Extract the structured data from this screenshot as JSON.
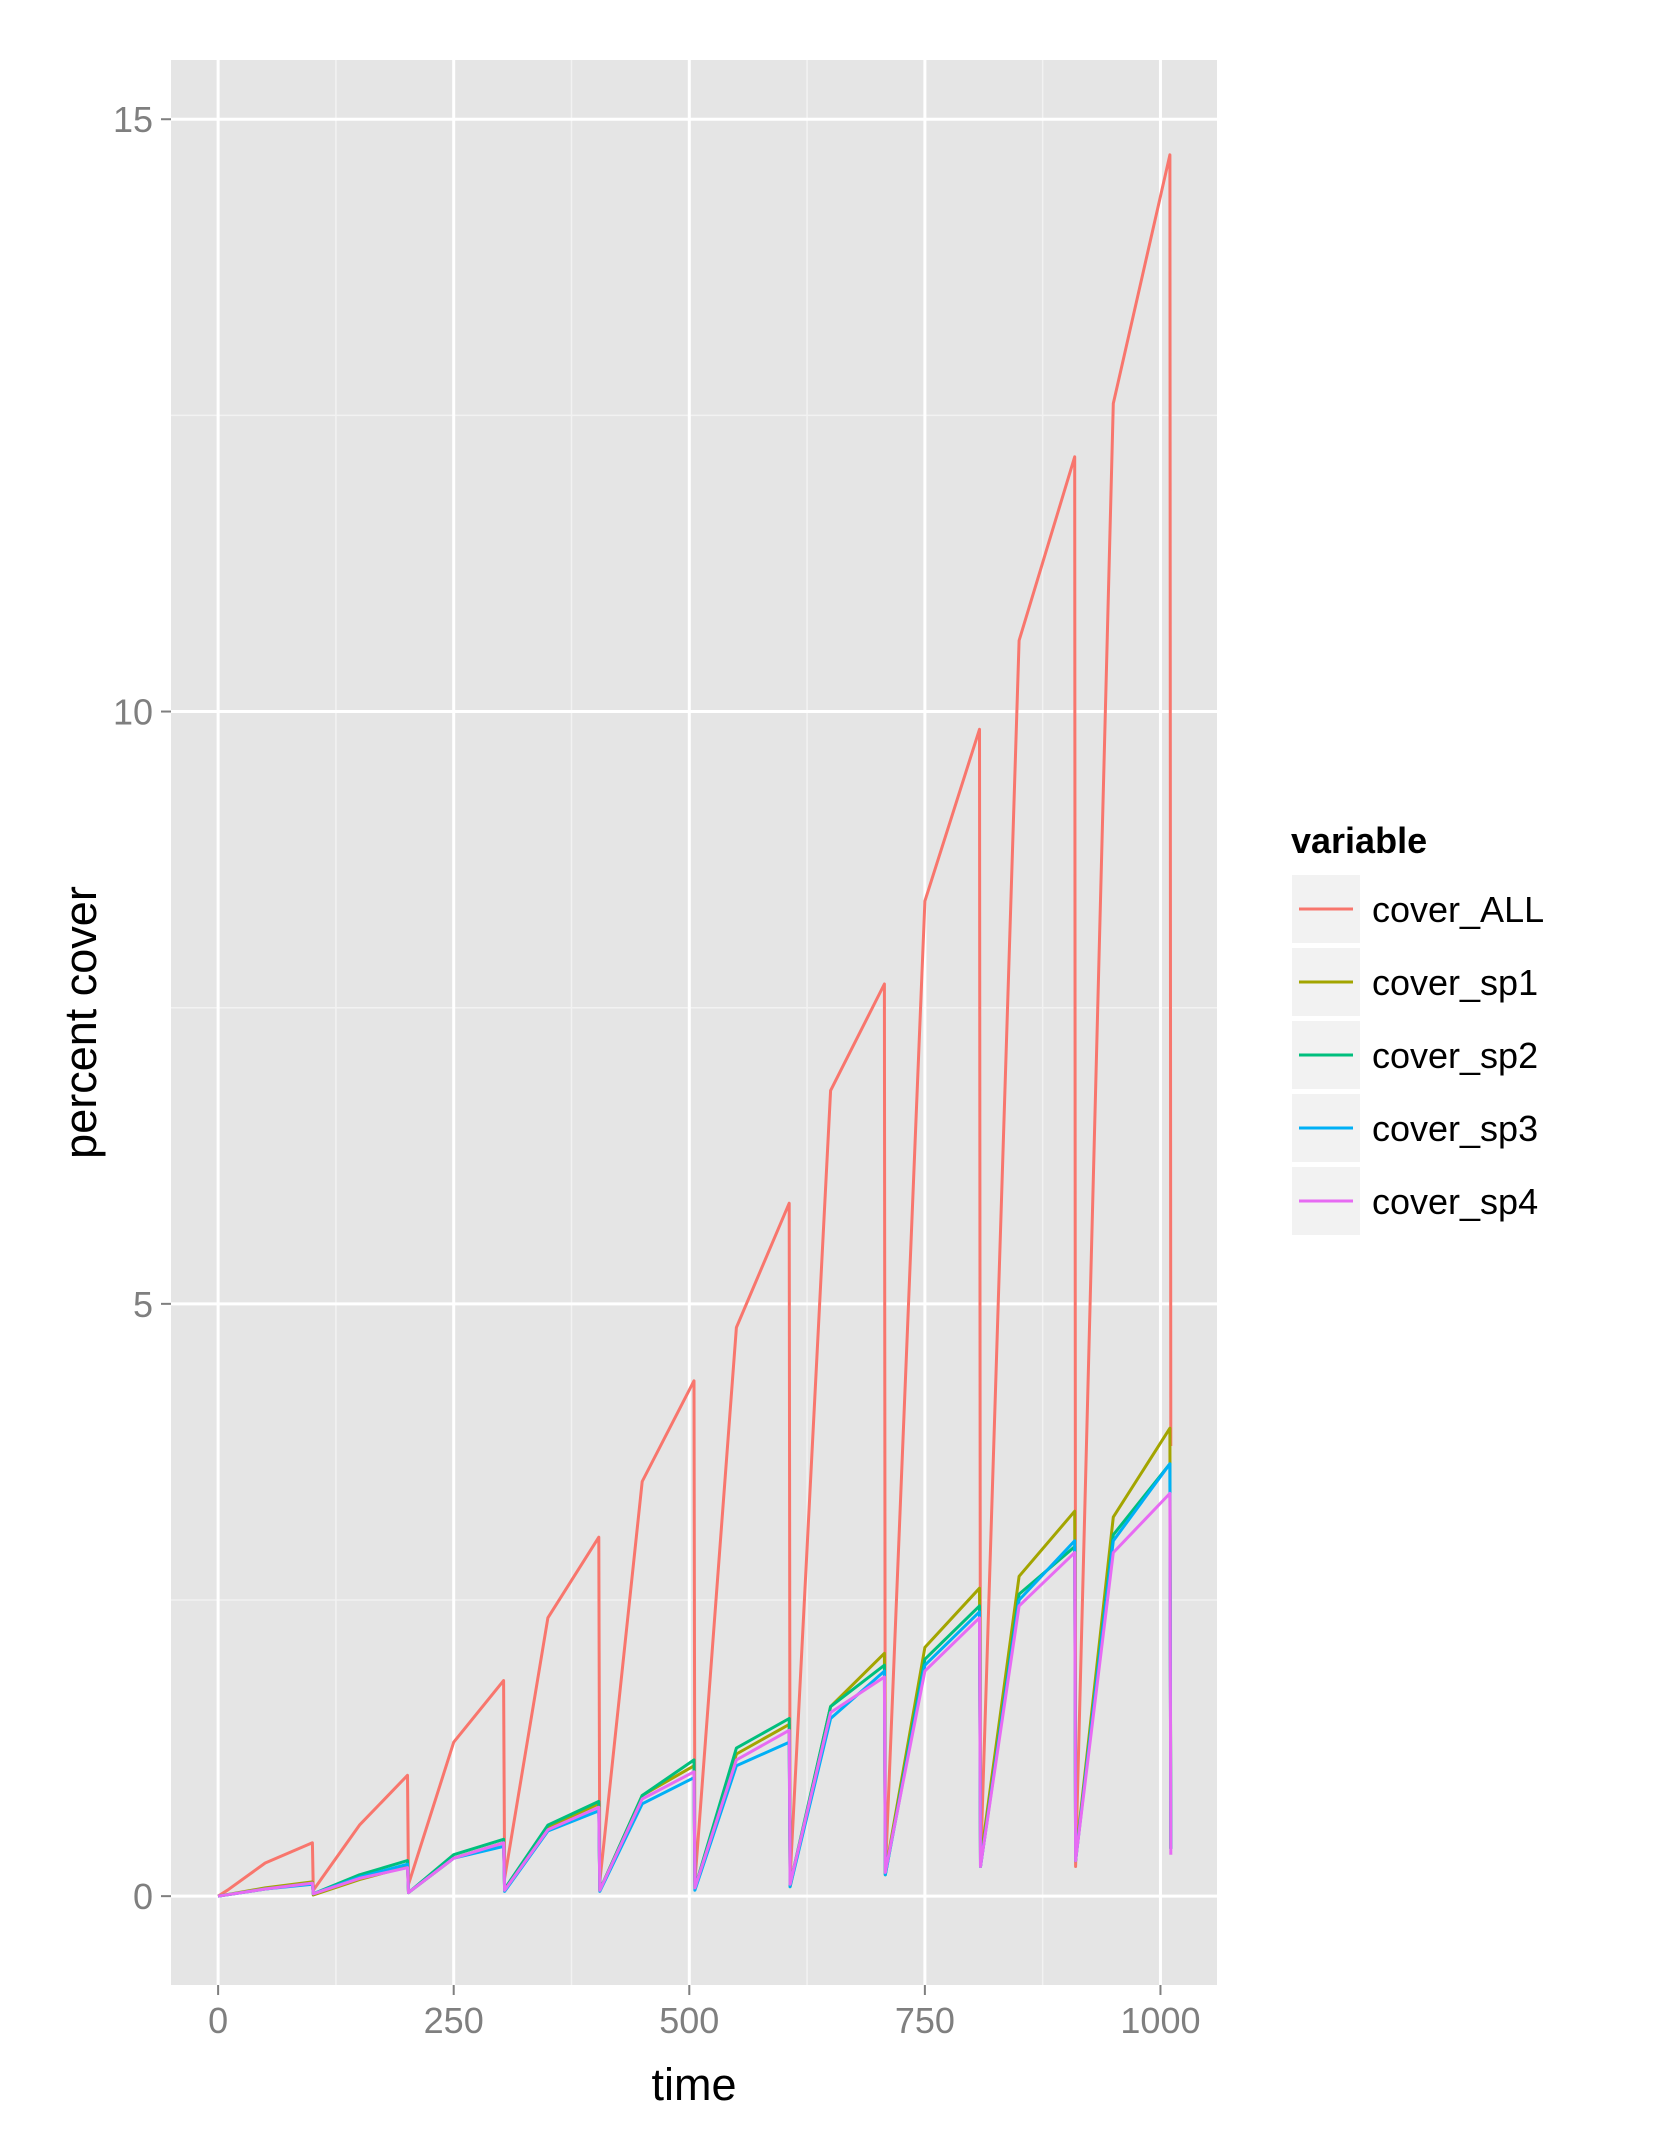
{
  "chart_data": {
    "type": "line",
    "xlabel": "time",
    "ylabel": "percent cover",
    "xlim": [
      -50,
      1060
    ],
    "ylim": [
      -0.75,
      15.5
    ],
    "x_ticks": [
      0,
      250,
      500,
      750,
      1000
    ],
    "x_tick_labels": [
      "0",
      "250",
      "500",
      "750",
      "1000"
    ],
    "y_ticks": [
      0,
      5,
      10,
      15
    ],
    "y_tick_labels": [
      "0",
      "5",
      "10",
      "15"
    ],
    "grid": true,
    "legend": {
      "title": "variable",
      "position": "right"
    },
    "panel_background": "#e5e5e5",
    "series": [
      {
        "name": "cover_ALL",
        "color": "#F8766D",
        "x": [
          0,
          10,
          50,
          100,
          101,
          150,
          201,
          202,
          250,
          303,
          304,
          350,
          404,
          405,
          450,
          505,
          506,
          550,
          606,
          607,
          650,
          707,
          708,
          750,
          808,
          809,
          850,
          909,
          910,
          950,
          1010,
          1011
        ],
        "y": [
          0,
          0.05,
          0.28,
          0.45,
          0.05,
          0.6,
          1.02,
          0.1,
          1.3,
          1.82,
          0.15,
          2.35,
          3.03,
          0.12,
          3.5,
          4.35,
          0.12,
          4.8,
          5.85,
          0.15,
          6.8,
          7.7,
          0.18,
          8.4,
          9.85,
          0.25,
          10.6,
          12.15,
          0.25,
          12.6,
          14.7,
          3.8
        ]
      },
      {
        "name": "cover_sp1",
        "color": "#A3A500",
        "x": [
          0,
          50,
          100,
          101,
          150,
          201,
          202,
          250,
          303,
          304,
          350,
          404,
          405,
          450,
          505,
          506,
          550,
          606,
          607,
          650,
          707,
          708,
          750,
          808,
          809,
          850,
          909,
          910,
          950,
          1010,
          1011
        ],
        "y": [
          0,
          0.07,
          0.12,
          0.01,
          0.14,
          0.25,
          0.03,
          0.32,
          0.45,
          0.05,
          0.58,
          0.78,
          0.05,
          0.85,
          1.1,
          0.06,
          1.2,
          1.45,
          0.08,
          1.6,
          2.05,
          0.2,
          2.1,
          2.6,
          0.3,
          2.7,
          3.25,
          0.32,
          3.2,
          3.95,
          0.4
        ]
      },
      {
        "name": "cover_sp2",
        "color": "#00BF7D",
        "x": [
          0,
          50,
          100,
          101,
          150,
          201,
          202,
          250,
          303,
          304,
          350,
          404,
          405,
          450,
          505,
          506,
          550,
          606,
          607,
          650,
          707,
          708,
          750,
          808,
          809,
          850,
          909,
          910,
          950,
          1010,
          1011
        ],
        "y": [
          0,
          0.06,
          0.11,
          0.02,
          0.18,
          0.3,
          0.03,
          0.35,
          0.48,
          0.06,
          0.6,
          0.8,
          0.05,
          0.85,
          1.15,
          0.07,
          1.25,
          1.5,
          0.1,
          1.6,
          1.95,
          0.18,
          2.0,
          2.45,
          0.25,
          2.55,
          2.95,
          0.3,
          3.05,
          3.65,
          0.4
        ]
      },
      {
        "name": "cover_sp3",
        "color": "#00B0F6",
        "x": [
          0,
          50,
          100,
          101,
          150,
          201,
          202,
          250,
          303,
          304,
          350,
          404,
          405,
          450,
          505,
          506,
          550,
          606,
          607,
          650,
          707,
          708,
          750,
          808,
          809,
          850,
          909,
          910,
          950,
          1010,
          1011
        ],
        "y": [
          0,
          0.06,
          0.1,
          0.02,
          0.16,
          0.27,
          0.03,
          0.32,
          0.42,
          0.04,
          0.55,
          0.72,
          0.04,
          0.78,
          1.0,
          0.05,
          1.1,
          1.3,
          0.08,
          1.5,
          1.9,
          0.18,
          1.95,
          2.4,
          0.25,
          2.5,
          3.0,
          0.3,
          3.0,
          3.65,
          0.4
        ]
      },
      {
        "name": "cover_sp4",
        "color": "#E76BF3",
        "x": [
          0,
          50,
          100,
          101,
          150,
          201,
          202,
          250,
          303,
          304,
          350,
          404,
          405,
          450,
          505,
          506,
          550,
          606,
          607,
          650,
          707,
          708,
          750,
          808,
          809,
          850,
          909,
          910,
          950,
          1010,
          1011
        ],
        "y": [
          0,
          0.06,
          0.11,
          0.02,
          0.15,
          0.24,
          0.03,
          0.32,
          0.45,
          0.05,
          0.56,
          0.75,
          0.05,
          0.82,
          1.05,
          0.07,
          1.15,
          1.4,
          0.1,
          1.55,
          1.85,
          0.2,
          1.9,
          2.35,
          0.25,
          2.45,
          2.9,
          0.3,
          2.9,
          3.4,
          0.35
        ]
      }
    ]
  }
}
